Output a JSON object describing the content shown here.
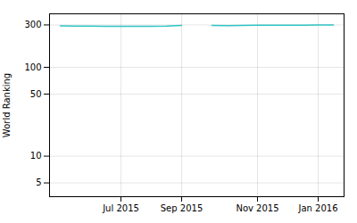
{
  "chart_data": {
    "type": "line",
    "categories": [
      null,
      null,
      null,
      null,
      "Jul 2015",
      null,
      null,
      null,
      "Sep 2015",
      null,
      null,
      null,
      null,
      "Nov 2015",
      null,
      null,
      null,
      "Jan 2016",
      null
    ],
    "values": [
      292,
      291,
      291,
      290,
      289,
      289,
      290,
      291,
      297,
      null,
      296,
      295,
      297,
      298,
      298,
      298,
      298,
      299,
      299
    ],
    "color": "#2ec4c4",
    "ylabel": "World Ranking",
    "log": "y",
    "ylim": [
      3.5,
      400
    ],
    "yticks": [
      5,
      10,
      50,
      100,
      300
    ],
    "grid": true
  }
}
